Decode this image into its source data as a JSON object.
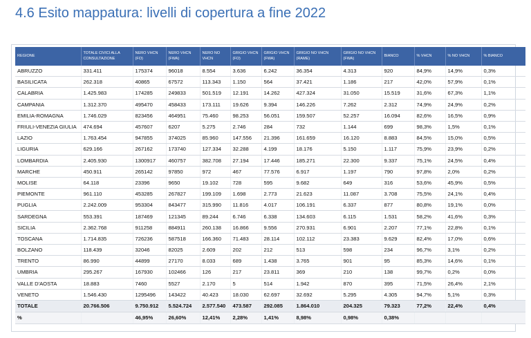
{
  "title": "4.6 Esito mappatura: livelli di copertura a fine 2022",
  "table": {
    "headers": [
      "REGIONE",
      "TOTALE CIVICI ALLA CONSULTAZIONE",
      "NERO VHCN (FO)",
      "NERO VHCN (FWA)",
      "NERO NO VHCN",
      "GRIGIO VHCN (FO)",
      "GRIGIO VHCN (FWA)",
      "GRIGIO NO VHCN (RAME)",
      "GRIGIO NO VHCN (FWA)",
      "BIANCO",
      "% VHCN",
      "% NO VHCN",
      "% BIANCO"
    ],
    "rows": [
      [
        " ABRUZZO",
        "331.411",
        "175374",
        "96018",
        "8.554",
        "3.636",
        "6.242",
        "36.354",
        "4.313",
        "920",
        "84,9%",
        "14,9%",
        "0,3%"
      ],
      [
        "BASILICATA",
        "262.318",
        "40865",
        "67572",
        "113.343",
        "1.150",
        "564",
        "37.421",
        "1.186",
        "217",
        "42,0%",
        "57,9%",
        "0,1%"
      ],
      [
        "CALABRIA",
        "1.425.983",
        "174285",
        "249833",
        "501.519",
        "12.191",
        "14.262",
        "427.324",
        "31.050",
        "15.519",
        "31,6%",
        "67,3%",
        "1,1%"
      ],
      [
        "CAMPANIA",
        "1.312.370",
        "495470",
        "458433",
        "173.111",
        "19.626",
        "9.394",
        "146.226",
        "7.262",
        "2.312",
        "74,9%",
        "24,9%",
        "0,2%"
      ],
      [
        "EMILIA-ROMAGNA",
        "1.746.029",
        "823456",
        "464951",
        "75.460",
        "98.253",
        "56.051",
        "159.507",
        "52.257",
        "16.094",
        "82,6%",
        "16,5%",
        "0,9%"
      ],
      [
        "FRIULI-VENEZIA GIULIA",
        "474.694",
        "457607",
        "6207",
        "5.275",
        "2.746",
        "284",
        "732",
        "1.144",
        "699",
        "98,3%",
        "1,5%",
        "0,1%"
      ],
      [
        "LAZIO",
        "1.763.454",
        "947855",
        "374025",
        "85.960",
        "147.556",
        "21.396",
        "161.659",
        "16.120",
        "8.883",
        "84,5%",
        "15,0%",
        "0,5%"
      ],
      [
        "LIGURIA",
        "629.166",
        "267162",
        "173740",
        "127.334",
        "32.288",
        "4.199",
        "18.176",
        "5.150",
        "1.117",
        "75,9%",
        "23,9%",
        "0,2%"
      ],
      [
        "LOMBARDIA",
        "2.405.930",
        "1300917",
        "460757",
        "382.708",
        "27.194",
        "17.446",
        "185.271",
        "22.300",
        "9.337",
        "75,1%",
        "24,5%",
        "0,4%"
      ],
      [
        "MARCHE",
        "450.911",
        "265142",
        "97850",
        "972",
        "467",
        "77.576",
        "6.917",
        "1.197",
        "790",
        "97,8%",
        "2,0%",
        "0,2%"
      ],
      [
        "MOLISE",
        "64.118",
        "23396",
        "9650",
        "19.102",
        "728",
        "595",
        "9.682",
        "649",
        "316",
        "53,6%",
        "45,9%",
        "0,5%"
      ],
      [
        "PIEMONTE",
        "961.110",
        "453285",
        "267827",
        "199.109",
        "1.698",
        "2.773",
        "21.623",
        "11.087",
        "3.708",
        "75,5%",
        "24,1%",
        "0,4%"
      ],
      [
        "PUGLIA",
        "2.242.009",
        "953304",
        "843477",
        "315.990",
        "11.816",
        "4.017",
        "106.191",
        "6.337",
        "877",
        "80,8%",
        "19,1%",
        "0,0%"
      ],
      [
        "SARDEGNA",
        "553.391",
        "187469",
        "121345",
        "89.244",
        "6.746",
        "6.338",
        "134.603",
        "6.115",
        "1.531",
        "58,2%",
        "41,6%",
        "0,3%"
      ],
      [
        "SICILIA",
        "2.362.768",
        "911258",
        "884911",
        "260.138",
        "16.866",
        "9.556",
        "270.931",
        "6.901",
        "2.207",
        "77,1%",
        "22,8%",
        "0,1%"
      ],
      [
        "TOSCANA",
        "1.714.835",
        "726236",
        "587518",
        "166.360",
        "71.483",
        "28.114",
        "102.112",
        "23.383",
        "9.629",
        "82,4%",
        "17,0%",
        "0,6%"
      ],
      [
        "BOLZANO",
        "118.439",
        "32046",
        "82025",
        "2.609",
        "202",
        "212",
        "513",
        "598",
        "234",
        "96,7%",
        "3,1%",
        "0,2%"
      ],
      [
        "TRENTO",
        "86.990",
        "44899",
        "27170",
        "8.033",
        "689",
        "1.438",
        "3.765",
        "901",
        "95",
        "85,3%",
        "14,6%",
        "0,1%"
      ],
      [
        "UMBRIA",
        "295.267",
        "167930",
        "102466",
        "126",
        "217",
        "23.811",
        "369",
        "210",
        "138",
        "99,7%",
        "0,2%",
        "0,0%"
      ],
      [
        "VALLE D'AOSTA",
        "18.883",
        "7460",
        "5527",
        "2.170",
        "5",
        "514",
        "1.942",
        "870",
        "395",
        "71,5%",
        "26,4%",
        "2,1%"
      ],
      [
        "VENETO",
        "1.546.430",
        "1295496",
        "143422",
        "40.423",
        "18.030",
        "62.697",
        "32.692",
        "5.295",
        "4.305",
        "94,7%",
        "5,1%",
        "0,3%"
      ]
    ],
    "total": [
      "TOTALE",
      "20.766.506",
      "9.750.912",
      "5.524.724",
      "2.577.540",
      "473.587",
      "292.085",
      "1.864.010",
      "204.325",
      "79.323",
      "77,2%",
      "22,4%",
      "0,4%"
    ],
    "percent": [
      "%",
      "",
      "46,95%",
      "26,60%",
      "12,41%",
      "2,28%",
      "1,41%",
      "8,98%",
      "0,98%",
      "0,38%",
      "",
      "",
      ""
    ]
  }
}
